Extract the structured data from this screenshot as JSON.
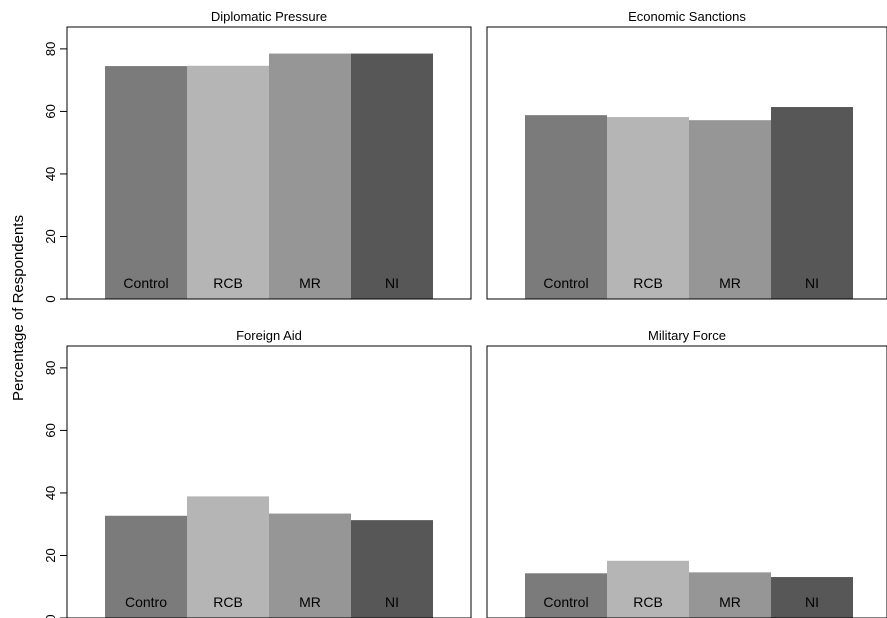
{
  "chart_data": {
    "type": "bar",
    "ylabel": "Percentage of Respondents",
    "ylim": [
      0,
      87
    ],
    "yticks": [
      0,
      20,
      40,
      60,
      80
    ],
    "colors": [
      "#7b7b7b",
      "#b5b5b5",
      "#969696",
      "#575757"
    ],
    "panels": [
      {
        "title": "Diplomatic Pressure",
        "categories": [
          "Control",
          "RCB",
          "MR",
          "NI"
        ],
        "values": [
          74.5,
          74.6,
          78.5,
          78.5
        ]
      },
      {
        "title": "Economic Sanctions",
        "categories": [
          "Control",
          "RCB",
          "MR",
          "NI"
        ],
        "values": [
          58.8,
          58.2,
          57.2,
          61.4
        ]
      },
      {
        "title": "Foreign Aid",
        "categories": [
          "Contro",
          "RCB",
          "MR",
          "NI"
        ],
        "values": [
          32.7,
          38.9,
          33.4,
          31.3
        ]
      },
      {
        "title": "Military Force",
        "categories": [
          "Control",
          "RCB",
          "MR",
          "NI"
        ],
        "values": [
          14.3,
          18.3,
          14.6,
          13.1
        ]
      }
    ]
  }
}
